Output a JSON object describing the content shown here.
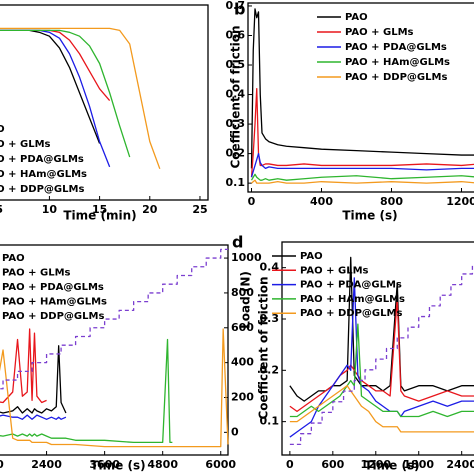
{
  "chart_data": [
    {
      "type": "line",
      "xlabel": "Time (min)",
      "xlim": [
        -1,
        25.8
      ],
      "ylim": [
        0,
        1
      ],
      "xticks": [
        5,
        10,
        15,
        20,
        25
      ],
      "x": [
        0,
        2,
        4,
        6,
        8,
        9,
        10,
        11,
        12,
        13,
        14,
        15,
        16,
        17,
        18,
        19,
        20,
        21
      ],
      "series": [
        {
          "name": "PAO",
          "color": "#000000",
          "values": [
            0.87,
            0.87,
            0.87,
            0.87,
            0.87,
            0.86,
            0.84,
            0.78,
            0.68,
            0.55,
            0.42,
            0.29,
            null,
            null,
            null,
            null,
            null,
            null
          ]
        },
        {
          "name": "PAO + GLMs",
          "color": "#e8161c",
          "values": [
            0.87,
            0.87,
            0.87,
            0.87,
            0.87,
            0.87,
            0.87,
            0.86,
            0.82,
            0.75,
            0.66,
            0.57,
            0.51,
            null,
            null,
            null,
            null,
            null
          ]
        },
        {
          "name": "PAO + PDA@GLMs",
          "color": "#1c1ce6",
          "values": [
            0.87,
            0.87,
            0.87,
            0.87,
            0.87,
            0.87,
            0.86,
            0.83,
            0.75,
            0.63,
            0.48,
            0.3,
            0.17,
            null,
            null,
            null,
            null,
            null
          ]
        },
        {
          "name": "PAO + HAm@GLMs",
          "color": "#2fb52f",
          "values": [
            0.87,
            0.87,
            0.87,
            0.87,
            0.87,
            0.87,
            0.87,
            0.87,
            0.86,
            0.84,
            0.79,
            0.7,
            0.55,
            0.38,
            0.22,
            null,
            null,
            null
          ]
        },
        {
          "name": "PAO + DDP@GLMs",
          "color": "#f39a1e",
          "values": [
            0.88,
            0.88,
            0.88,
            0.88,
            0.88,
            0.88,
            0.88,
            0.88,
            0.88,
            0.88,
            0.88,
            0.88,
            0.88,
            0.87,
            0.8,
            0.55,
            0.3,
            0.16
          ]
        }
      ]
    },
    {
      "type": "line",
      "label": "b",
      "xlabel": "Time (s)",
      "ylabel": "Coefficient of friction",
      "xlim": [
        -20,
        1300
      ],
      "ylim": [
        0.07,
        0.71
      ],
      "xticks": [
        0,
        400,
        800,
        1200
      ],
      "yticks": [
        0.1,
        0.2,
        0.3,
        0.4,
        0.5,
        0.6,
        0.7
      ],
      "x": [
        0,
        10,
        20,
        30,
        40,
        50,
        60,
        80,
        100,
        150,
        200,
        300,
        400,
        600,
        800,
        1000,
        1200,
        1300
      ],
      "series": [
        {
          "name": "PAO",
          "color": "#000000",
          "values": [
            0.15,
            0.55,
            0.69,
            0.66,
            0.68,
            0.4,
            0.27,
            0.25,
            0.24,
            0.23,
            0.225,
            0.22,
            0.215,
            0.21,
            0.205,
            0.2,
            0.195,
            0.195
          ]
        },
        {
          "name": "PAO + GLMs",
          "color": "#e8161c",
          "values": [
            0.12,
            0.2,
            0.3,
            0.42,
            0.2,
            0.16,
            0.16,
            0.165,
            0.165,
            0.16,
            0.16,
            0.165,
            0.16,
            0.16,
            0.16,
            0.165,
            0.16,
            0.165
          ]
        },
        {
          "name": "PAO + PDA@GLMs",
          "color": "#1c1ce6",
          "values": [
            0.12,
            0.14,
            0.16,
            0.18,
            0.2,
            0.17,
            0.16,
            0.15,
            0.155,
            0.15,
            0.15,
            0.15,
            0.15,
            0.15,
            0.15,
            0.145,
            0.15,
            0.15
          ]
        },
        {
          "name": "PAO + HAm@GLMs",
          "color": "#2fb52f",
          "values": [
            0.11,
            0.12,
            0.13,
            0.12,
            0.115,
            0.11,
            0.11,
            0.115,
            0.11,
            0.115,
            0.11,
            0.115,
            0.12,
            0.125,
            0.115,
            0.12,
            0.125,
            0.12
          ]
        },
        {
          "name": "PAO + DDP@GLMs",
          "color": "#f39a1e",
          "values": [
            0.1,
            0.105,
            0.11,
            0.1,
            0.1,
            0.1,
            0.1,
            0.1,
            0.1,
            0.105,
            0.1,
            0.1,
            0.105,
            0.1,
            0.105,
            0.1,
            0.105,
            0.1
          ]
        }
      ]
    },
    {
      "type": "line",
      "xlabel": "Time (s)",
      "y2label": "Load (N)",
      "xlim": [
        900,
        6150
      ],
      "ylim": [
        0,
        1
      ],
      "y2lim": [
        -130,
        1075
      ],
      "xticks": [
        1200,
        2400,
        3600,
        4800,
        6000
      ],
      "y2ticks": [
        0,
        200,
        400,
        600,
        800,
        1000
      ],
      "x": [
        900,
        1200,
        1500,
        1700,
        1800,
        1900,
        2000,
        2050,
        2100,
        2150,
        2200,
        2300,
        2400,
        2500,
        2600,
        2650,
        2700,
        2800,
        3000,
        3600,
        4200,
        4800,
        4900,
        4950,
        5000,
        5100,
        5400,
        6000,
        6050,
        6150
      ],
      "series": [
        {
          "name": "PAO",
          "color": "#000000",
          "values": [
            0.2,
            0.22,
            0.2,
            0.21,
            0.23,
            0.2,
            0.22,
            0.21,
            0.2,
            0.22,
            0.21,
            0.2,
            0.22,
            0.21,
            0.23,
            0.52,
            0.25,
            0.2,
            null,
            null,
            null,
            null,
            null,
            null,
            null,
            null,
            null,
            null,
            null,
            null
          ]
        },
        {
          "name": "PAO + GLMs",
          "color": "#e8161c",
          "values": [
            0.24,
            0.26,
            0.25,
            0.3,
            0.55,
            0.28,
            0.3,
            0.6,
            0.26,
            0.58,
            0.28,
            0.25,
            0.26,
            null,
            null,
            null,
            null,
            null,
            null,
            null,
            null,
            null,
            null,
            null,
            null,
            null,
            null,
            null,
            null,
            null
          ]
        },
        {
          "name": "PAO + PDA@GLMs",
          "color": "#1c1ce6",
          "values": [
            0.18,
            0.17,
            0.19,
            0.18,
            0.18,
            0.17,
            0.19,
            0.18,
            0.17,
            0.18,
            0.19,
            0.18,
            0.17,
            0.18,
            0.17,
            0.18,
            0.17,
            0.18,
            null,
            null,
            null,
            null,
            null,
            null,
            null,
            null,
            null,
            null,
            null,
            null
          ]
        },
        {
          "name": "PAO + HAm@GLMs",
          "color": "#2fb52f",
          "values": [
            0.1,
            0.1,
            0.09,
            0.1,
            0.09,
            0.1,
            0.09,
            0.1,
            0.09,
            0.1,
            0.09,
            0.1,
            0.09,
            0.08,
            0.08,
            0.08,
            0.08,
            0.08,
            0.07,
            0.07,
            0.06,
            0.06,
            0.55,
            0.06,
            0.06,
            null,
            null,
            null,
            null,
            null
          ]
        },
        {
          "name": "PAO + DDP@GLMs",
          "color": "#f39a1e",
          "values": [
            0.55,
            0.1,
            0.5,
            0.08,
            0.07,
            0.07,
            0.07,
            0.07,
            0.06,
            0.06,
            0.06,
            0.06,
            0.06,
            0.05,
            0.05,
            0.05,
            0.05,
            0.05,
            0.05,
            0.04,
            0.04,
            0.04,
            0.04,
            0.04,
            0.04,
            0.04,
            0.04,
            0.04,
            0.6,
            0.05
          ]
        },
        {
          "color": "#7b3fd0",
          "axis": "y2",
          "step": true,
          "dash": true,
          "x": [
            900,
            1200,
            1500,
            1800,
            2100,
            2400,
            2700,
            3000,
            3300,
            3600,
            3900,
            4200,
            4500,
            4800,
            5100,
            5400,
            5700,
            6000,
            6150
          ],
          "values": [
            200,
            250,
            300,
            350,
            400,
            450,
            500,
            550,
            600,
            650,
            700,
            750,
            800,
            850,
            900,
            950,
            1000,
            1050,
            1050
          ]
        }
      ]
    },
    {
      "type": "line",
      "label": "d",
      "xlabel": "Time (s)",
      "ylabel": "Coefficient of friction",
      "xlim": [
        -110,
        2600
      ],
      "ylim": [
        0.035,
        0.45
      ],
      "y2lim": [
        0,
        1
      ],
      "xticks": [
        0,
        600,
        1200,
        1800,
        2400
      ],
      "yticks": [
        0.1,
        0.2,
        0.3,
        0.4
      ],
      "x": [
        0,
        100,
        200,
        300,
        400,
        500,
        600,
        700,
        800,
        850,
        900,
        950,
        1000,
        1100,
        1200,
        1300,
        1400,
        1500,
        1550,
        1600,
        1800,
        2000,
        2200,
        2400,
        2600
      ],
      "series": [
        {
          "name": "PAO",
          "color": "#000000",
          "values": [
            0.17,
            0.15,
            0.14,
            0.15,
            0.16,
            0.16,
            0.17,
            0.17,
            0.18,
            0.42,
            0.19,
            0.18,
            0.17,
            0.17,
            0.17,
            0.16,
            0.17,
            0.37,
            0.17,
            0.16,
            0.17,
            0.17,
            0.16,
            0.17,
            0.17
          ]
        },
        {
          "name": "PAO + GLMs",
          "color": "#e8161c",
          "values": [
            0.13,
            0.12,
            0.13,
            0.14,
            0.15,
            0.16,
            0.17,
            0.19,
            0.2,
            0.21,
            0.2,
            0.19,
            0.18,
            0.17,
            0.16,
            0.16,
            0.15,
            0.34,
            0.16,
            0.15,
            0.14,
            0.15,
            0.16,
            0.15,
            0.15
          ]
        },
        {
          "name": "PAO + PDA@GLMs",
          "color": "#1c1ce6",
          "values": [
            0.07,
            0.08,
            0.09,
            0.1,
            0.13,
            0.15,
            0.17,
            0.19,
            0.21,
            0.2,
            0.38,
            0.19,
            0.17,
            0.16,
            0.14,
            0.13,
            0.12,
            0.12,
            0.11,
            0.12,
            0.13,
            0.14,
            0.13,
            0.14,
            0.14
          ]
        },
        {
          "name": "PAO + HAm@GLMs",
          "color": "#2fb52f",
          "values": [
            0.11,
            0.11,
            0.12,
            0.13,
            0.12,
            0.13,
            0.14,
            0.15,
            0.17,
            0.18,
            0.17,
            0.29,
            0.15,
            0.14,
            0.13,
            0.12,
            0.12,
            0.12,
            0.11,
            0.11,
            0.11,
            0.12,
            0.11,
            0.12,
            0.12
          ]
        },
        {
          "name": "PAO + DDP@GLMs",
          "color": "#f39a1e",
          "values": [
            0.1,
            0.1,
            0.11,
            0.12,
            0.13,
            0.14,
            0.15,
            0.16,
            0.17,
            0.16,
            0.15,
            0.14,
            0.13,
            0.12,
            0.1,
            0.09,
            0.09,
            0.09,
            0.08,
            0.08,
            0.08,
            0.08,
            0.08,
            0.08,
            0.08
          ]
        },
        {
          "color": "#7b3fd0",
          "axis": "y2",
          "step": true,
          "dash": true,
          "x": [
            0,
            150,
            300,
            450,
            600,
            750,
            900,
            1050,
            1200,
            1350,
            1500,
            1650,
            1800,
            1950,
            2100,
            2250,
            2400,
            2550
          ],
          "values": [
            0.05,
            0.1,
            0.15,
            0.2,
            0.25,
            0.3,
            0.35,
            0.4,
            0.45,
            0.5,
            0.55,
            0.6,
            0.65,
            0.7,
            0.75,
            0.8,
            0.85,
            0.9
          ]
        }
      ]
    }
  ]
}
